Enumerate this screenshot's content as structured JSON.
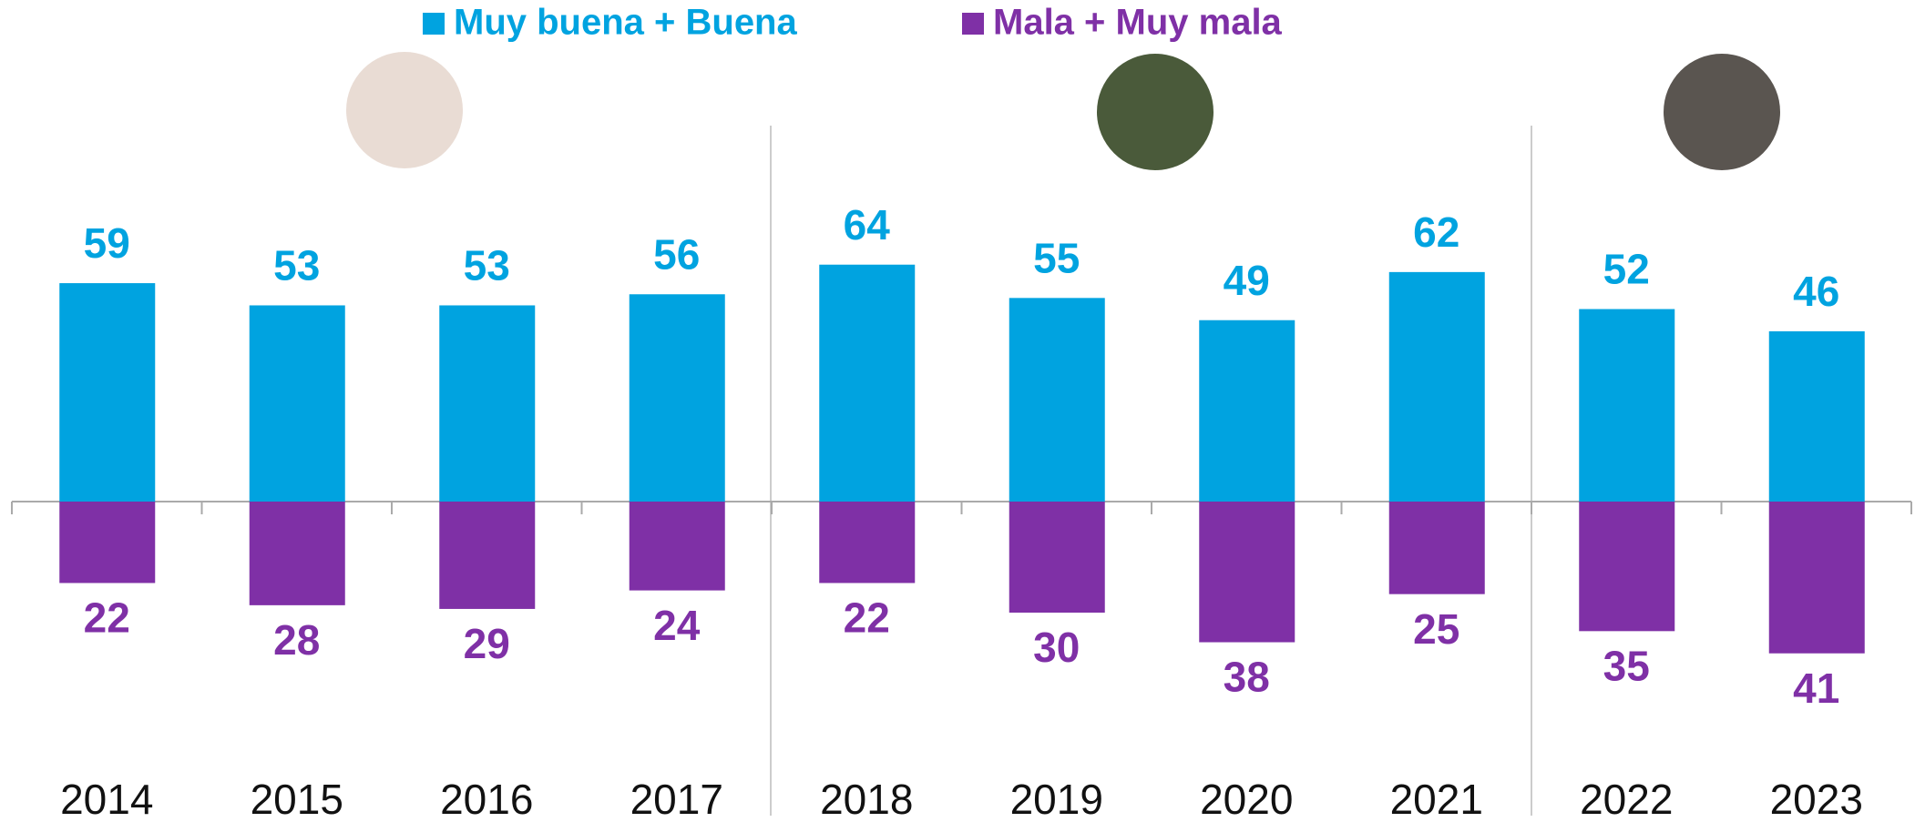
{
  "chart_data": {
    "type": "bar",
    "categories": [
      "2014",
      "2015",
      "2016",
      "2017",
      "2018",
      "2019",
      "2020",
      "2021",
      "2022",
      "2023"
    ],
    "series": [
      {
        "name": "Muy buena + Buena",
        "color": "#00a3e0",
        "values": [
          59,
          53,
          53,
          56,
          64,
          55,
          49,
          62,
          52,
          46
        ]
      },
      {
        "name": "Mala + Muy mala",
        "color": "#7f30a6",
        "values": [
          -22,
          -28,
          -29,
          -24,
          -22,
          -30,
          -38,
          -25,
          -35,
          -41
        ],
        "value_labels": [
          "22",
          "28",
          "29",
          "24",
          "22",
          "30",
          "38",
          "25",
          "35",
          "41"
        ]
      }
    ],
    "ylim": [
      -60,
      75
    ]
  }
}
